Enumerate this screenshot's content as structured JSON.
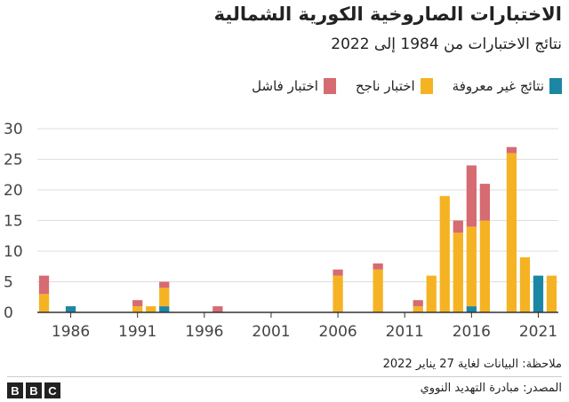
{
  "title": "الاختبارات الصاروخية الكورية الشمالية",
  "subtitle": "نتائج الاختبارات من 1984 إلى 2022",
  "note": "ملاحظة: البيانات لغاية 27 يناير 2022",
  "source": "المصدر: مبادرة التهديد النووي",
  "logo": [
    "B",
    "B",
    "C"
  ],
  "colors": {
    "failed": "#D66B72",
    "success": "#F5B324",
    "unknown": "#1C87A4",
    "grid": "#DDDDDD",
    "axis": "#333333"
  },
  "chart_data": {
    "type": "bar",
    "stacked": true,
    "title": "الاختبارات الصاروخية الكورية الشمالية",
    "subtitle": "نتائج الاختبارات من 1984 إلى 2022",
    "x": [
      1984,
      1985,
      1986,
      1987,
      1988,
      1989,
      1990,
      1991,
      1992,
      1993,
      1994,
      1995,
      1996,
      1997,
      1998,
      1999,
      2000,
      2001,
      2002,
      2003,
      2004,
      2005,
      2006,
      2007,
      2008,
      2009,
      2010,
      2011,
      2012,
      2013,
      2014,
      2015,
      2016,
      2017,
      2018,
      2019,
      2020,
      2021,
      2022
    ],
    "xticks": [
      1986,
      1991,
      1996,
      2001,
      2006,
      2011,
      2016,
      2021
    ],
    "ylim": [
      0,
      30
    ],
    "yticks": [
      0,
      5,
      10,
      15,
      20,
      25,
      30
    ],
    "legend": [
      "اختبار فاشل",
      "اختبار ناجح",
      "نتائج غير معروفة"
    ],
    "series": [
      {
        "name": "نتائج غير معروفة",
        "key": "unknown",
        "values": [
          0,
          0,
          1,
          0,
          0,
          0,
          0,
          0,
          0,
          1,
          0,
          0,
          0,
          0,
          0,
          0,
          0,
          0,
          0,
          0,
          0,
          0,
          0,
          0,
          0,
          0,
          0,
          0,
          0,
          0,
          0,
          0,
          1,
          0,
          0,
          0,
          0,
          6,
          0
        ]
      },
      {
        "name": "اختبار ناجح",
        "key": "success",
        "values": [
          3,
          0,
          0,
          0,
          0,
          0,
          0,
          1,
          1,
          3,
          0,
          0,
          0,
          0,
          0,
          0,
          0,
          0,
          0,
          0,
          0,
          0,
          6,
          0,
          0,
          7,
          0,
          0,
          1,
          6,
          19,
          13,
          13,
          15,
          0,
          26,
          9,
          0,
          6
        ]
      },
      {
        "name": "اختبار فاشل",
        "key": "failed",
        "values": [
          3,
          0,
          0,
          0,
          0,
          0,
          0,
          1,
          0,
          1,
          0,
          0,
          0,
          1,
          0,
          0,
          0,
          0,
          0,
          0,
          0,
          0,
          1,
          0,
          0,
          1,
          0,
          0,
          1,
          0,
          0,
          2,
          10,
          6,
          0,
          1,
          0,
          0,
          0
        ]
      }
    ]
  }
}
